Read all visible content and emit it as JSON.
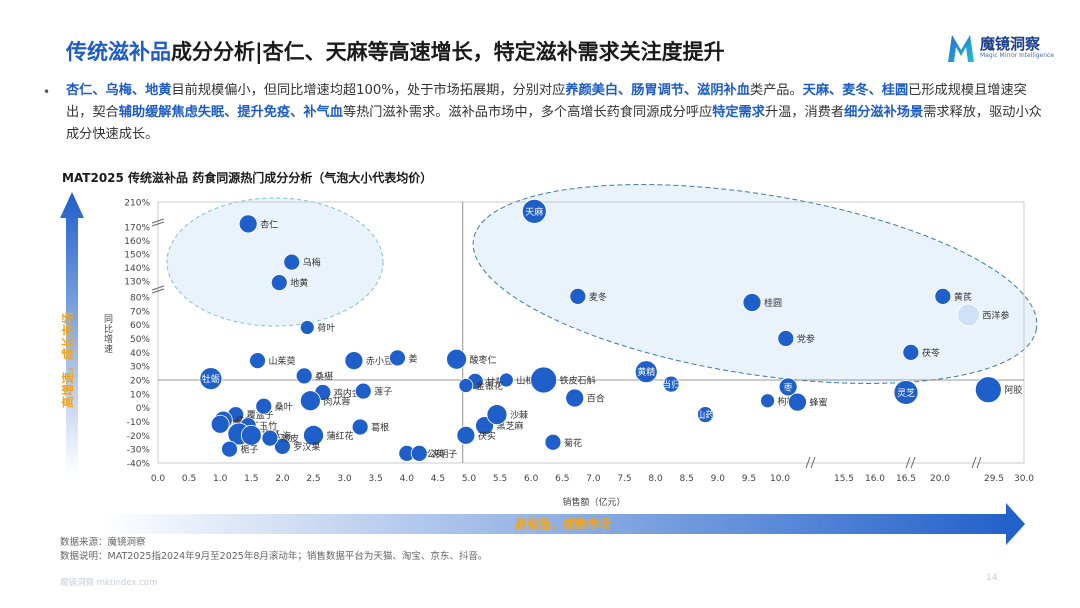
{
  "header": {
    "title_highlight": "传统滋补品",
    "title_rest": "成分分析|杏仁、天麻等高速增长，特定滋补需求关注度提升",
    "logo_cn": "魔镜洞察",
    "logo_en": "Magic Mirror Intelligence"
  },
  "summary": [
    {
      "t": "杏仁、乌梅、地黄",
      "k": true
    },
    {
      "t": "目前规模偏小，但同比增速均超100%，处于市场拓展期，分别对应",
      "k": false
    },
    {
      "t": "养颜美白、肠胃调节、滋阴补血",
      "k": true
    },
    {
      "t": "类产品。",
      "k": false
    },
    {
      "t": "天麻、麦冬、桂圆",
      "k": true
    },
    {
      "t": "已形成规模且增速突出，契合",
      "k": false
    },
    {
      "t": "辅助缓解焦虑失眠、提升免疫、补气血",
      "k": true
    },
    {
      "t": "等热门滋补需求。滋补品市场中，多个高增长药食同源成分呼应",
      "k": false
    },
    {
      "t": "特定需求",
      "k": true
    },
    {
      "t": "升温，消费者",
      "k": false
    },
    {
      "t": "细分滋补场景",
      "k": true
    },
    {
      "t": "需求释放，驱动小众成分快速成长。",
      "k": false
    }
  ],
  "chart_title": "MAT2025 传统滋补品 药食同源热门成分分析（气泡大小代表均价）",
  "footer": {
    "source": "数据来源：魔镜洞察",
    "note": "数据说明：MAT2025指2024年9月至2025年8月滚动年；销售数据平台为天猫、淘宝、京东、抖音。",
    "watermark": "魔镜洞察 mktindex.com",
    "page": "14"
  },
  "chart_data": {
    "type": "scatter",
    "title": "MAT2025 传统滋补品 药食同源热门成分分析（气泡大小代表均价）",
    "xlabel": "销售额（亿元）",
    "ylabel": "同比增速",
    "x_ticks": [
      "0.0",
      "0.5",
      "1.0",
      "1.5",
      "2.0",
      "2.5",
      "3.0",
      "3.5",
      "4.0",
      "4.5",
      "5.0",
      "5.5",
      "6.0",
      "6.5",
      "7.0",
      "7.5",
      "8.0",
      "8.5",
      "9.0",
      "9.5",
      "10.0",
      "15.5",
      "16.0",
      "16.5",
      "20.0",
      "29.5",
      "30.0"
    ],
    "y_ticks": [
      "210%",
      "170%",
      "160%",
      "150%",
      "140%",
      "130%",
      "80%",
      "70%",
      "60%",
      "50%",
      "40%",
      "30%",
      "20%",
      "10%",
      "0%",
      "-10%",
      "-20%",
      "-30%",
      "-40%"
    ],
    "ref_x": 4.9,
    "ref_y": 20,
    "y_arrow_label": "高增速，成长市场",
    "x_arrow_label": "高销售，成熟市场",
    "colors": {
      "bubble": "#1f5fc9",
      "bubble_light": "#cfe0f7",
      "zone": "#eaf3fc",
      "zone_edge": "#7ec2d6",
      "zone_edge_right": "#3d78b8",
      "arrow": "#1f5fc9"
    },
    "points": [
      {
        "name": "杏仁",
        "x": 1.45,
        "y": 175,
        "r": 9,
        "inside": false
      },
      {
        "name": "乌梅",
        "x": 2.15,
        "y": 144,
        "r": 8,
        "inside": false
      },
      {
        "name": "地黄",
        "x": 1.95,
        "y": 125,
        "r": 8,
        "inside": false
      },
      {
        "name": "天麻",
        "x": 6.05,
        "y": 195,
        "r": 12,
        "inside": true
      },
      {
        "name": "麦冬",
        "x": 6.75,
        "y": 82,
        "r": 8,
        "inside": false
      },
      {
        "name": "桂圆",
        "x": 9.55,
        "y": 76,
        "r": 9,
        "inside": false
      },
      {
        "name": "黄芪",
        "x": 20.5,
        "y": 82,
        "r": 8,
        "inside": false
      },
      {
        "name": "西洋参",
        "x": 25.0,
        "y": 67,
        "r": 11,
        "inside": false,
        "light": true
      },
      {
        "name": "党参",
        "x": 10.5,
        "y": 50,
        "r": 8,
        "inside": false
      },
      {
        "name": "茯苓",
        "x": 17.0,
        "y": 40,
        "r": 8,
        "inside": false
      },
      {
        "name": "荷叶",
        "x": 2.4,
        "y": 58,
        "r": 7,
        "inside": false
      },
      {
        "name": "赤小豆",
        "x": 3.15,
        "y": 34,
        "r": 9,
        "inside": false
      },
      {
        "name": "山茱萸",
        "x": 1.6,
        "y": 34,
        "r": 8,
        "inside": false
      },
      {
        "name": "姜",
        "x": 3.85,
        "y": 36,
        "r": 8,
        "inside": false
      },
      {
        "name": "酸枣仁",
        "x": 4.8,
        "y": 35,
        "r": 10,
        "inside": false
      },
      {
        "name": "桑椹",
        "x": 2.35,
        "y": 23,
        "r": 8,
        "inside": false
      },
      {
        "name": "牡蛎",
        "x": 0.85,
        "y": 21,
        "r": 11,
        "inside": true
      },
      {
        "name": "甘草",
        "x": 5.1,
        "y": 19,
        "r": 8,
        "inside": false
      },
      {
        "name": "鸡内金",
        "x": 2.65,
        "y": 11,
        "r": 8,
        "inside": false
      },
      {
        "name": "莲子",
        "x": 3.3,
        "y": 12,
        "r": 8,
        "inside": false
      },
      {
        "name": "山楂",
        "x": 5.6,
        "y": 20,
        "r": 7,
        "inside": false
      },
      {
        "name": "铁皮石斛",
        "x": 6.2,
        "y": 20,
        "r": 13,
        "inside": false
      },
      {
        "name": "黄精",
        "x": 7.85,
        "y": 26,
        "r": 11,
        "inside": true
      },
      {
        "name": "当归",
        "x": 8.25,
        "y": 17,
        "r": 8,
        "inside": true
      },
      {
        "name": "金银花",
        "x": 4.95,
        "y": 16,
        "r": 7,
        "inside": false
      },
      {
        "name": "覆盆子",
        "x": 1.25,
        "y": -5,
        "r": 8,
        "inside": false
      },
      {
        "name": "橘皮",
        "x": 1.05,
        "y": -9,
        "r": 9,
        "inside": false
      },
      {
        "name": "桑叶",
        "x": 1.7,
        "y": 1,
        "r": 8,
        "inside": false
      },
      {
        "name": "肉苁蓉",
        "x": 2.45,
        "y": 5,
        "r": 10,
        "inside": false
      },
      {
        "name": "百合",
        "x": 6.7,
        "y": 7,
        "r": 9,
        "inside": false
      },
      {
        "name": "枸杞子",
        "x": 9.8,
        "y": 5,
        "r": 7,
        "inside": false
      },
      {
        "name": "枣",
        "x": 10.7,
        "y": 15,
        "r": 9,
        "inside": true
      },
      {
        "name": "蜂蜜",
        "x": 11.5,
        "y": 4,
        "r": 9,
        "inside": false
      },
      {
        "name": "灵芝",
        "x": 16.5,
        "y": 11,
        "r": 12,
        "inside": true
      },
      {
        "name": "阿胶",
        "x": 28.5,
        "y": 13,
        "r": 13,
        "inside": false
      },
      {
        "name": "黑芝麻",
        "x": 5.25,
        "y": -13,
        "r": 9,
        "inside": false
      },
      {
        "name": "沙棘",
        "x": 5.45,
        "y": -5,
        "r": 10,
        "inside": false
      },
      {
        "name": "山药",
        "x": 8.8,
        "y": -5,
        "r": 8,
        "inside": true
      },
      {
        "name": "薏苡仁",
        "x": 1.0,
        "y": -12,
        "r": 9,
        "inside": false
      },
      {
        "name": "玉竹",
        "x": 1.45,
        "y": -13,
        "r": 8,
        "inside": false
      },
      {
        "name": "化橘红",
        "x": 1.3,
        "y": -19,
        "r": 11,
        "inside": false
      },
      {
        "name": "胖大海",
        "x": 1.5,
        "y": -20,
        "r": 10,
        "inside": false
      },
      {
        "name": "葛根",
        "x": 3.25,
        "y": -14,
        "r": 8,
        "inside": false
      },
      {
        "name": "茯实",
        "x": 4.95,
        "y": -20,
        "r": 9,
        "inside": false
      },
      {
        "name": "蒲红花",
        "x": 2.5,
        "y": -20,
        "r": 10,
        "inside": false
      },
      {
        "name": "栀子",
        "x": 1.15,
        "y": -30,
        "r": 8,
        "inside": false
      },
      {
        "name": "罗汉果",
        "x": 2.0,
        "y": -28,
        "r": 8,
        "inside": false
      },
      {
        "name": "蒲公英",
        "x": 4.0,
        "y": -33,
        "r": 8,
        "inside": false
      },
      {
        "name": "决明子",
        "x": 4.2,
        "y": -33,
        "r": 8,
        "inside": false
      },
      {
        "name": "菊花",
        "x": 6.35,
        "y": -25,
        "r": 8,
        "inside": false
      },
      {
        "name": "陈皮",
        "x": 1.8,
        "y": -22,
        "r": 8,
        "inside": false
      }
    ]
  }
}
